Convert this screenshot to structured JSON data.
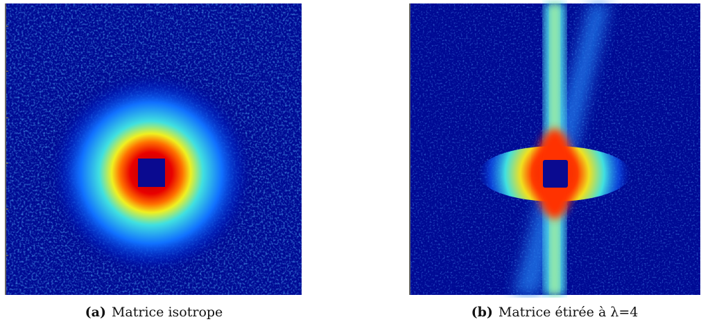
{
  "figures": [
    {
      "label": "(a)",
      "caption": "Matrice isotrope"
    },
    {
      "label": "(b)",
      "caption": "Matrice étirée à λ=4"
    }
  ]
}
